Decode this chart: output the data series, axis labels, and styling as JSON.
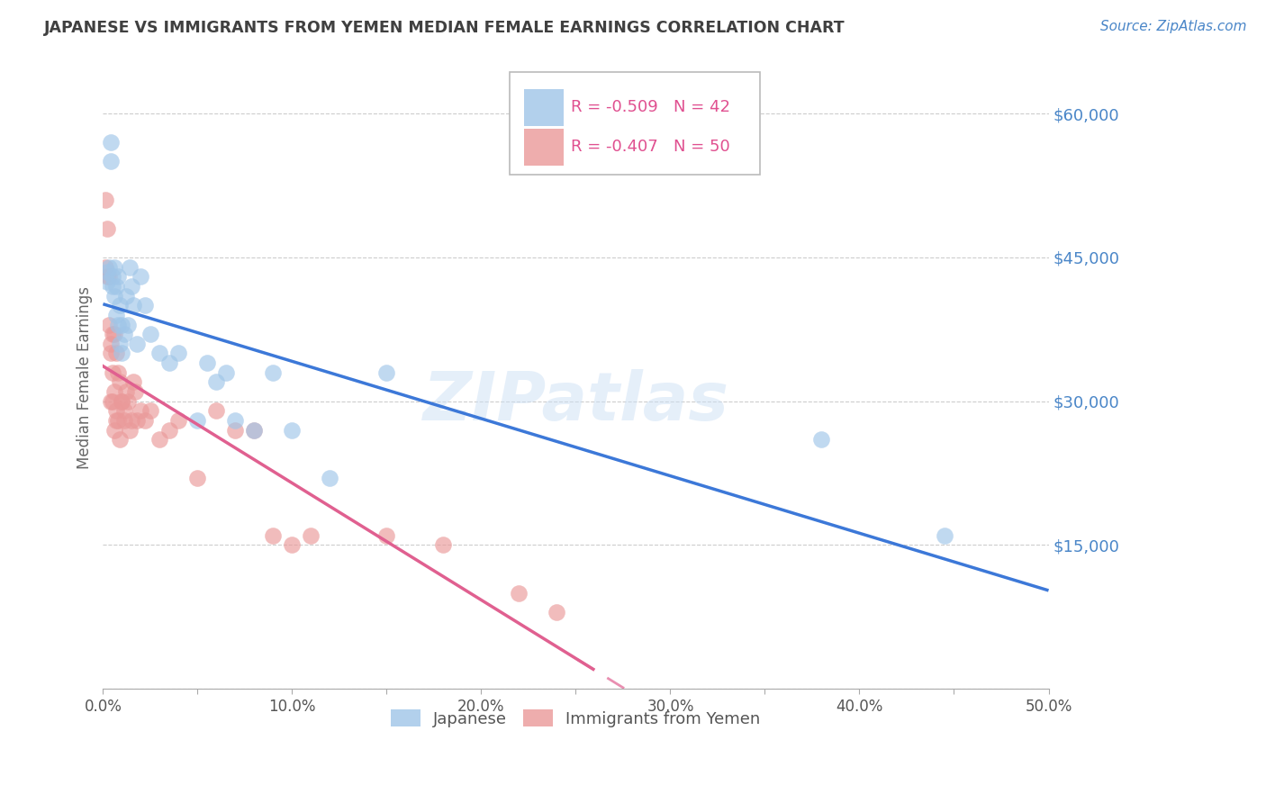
{
  "title": "JAPANESE VS IMMIGRANTS FROM YEMEN MEDIAN FEMALE EARNINGS CORRELATION CHART",
  "source": "Source: ZipAtlas.com",
  "ylabel": "Median Female Earnings",
  "x_min": 0.0,
  "x_max": 0.5,
  "y_min": 0,
  "y_max": 65000,
  "yticks": [
    0,
    15000,
    30000,
    45000,
    60000
  ],
  "ytick_labels": [
    "",
    "$15,000",
    "$30,000",
    "$45,000",
    "$60,000"
  ],
  "xtick_labels": [
    "0.0%",
    "",
    "10.0%",
    "",
    "20.0%",
    "",
    "30.0%",
    "",
    "40.0%",
    "",
    "50.0%"
  ],
  "xticks": [
    0.0,
    0.05,
    0.1,
    0.15,
    0.2,
    0.25,
    0.3,
    0.35,
    0.4,
    0.45,
    0.5
  ],
  "watermark": "ZIPatlas",
  "legend_label_japanese": "Japanese",
  "legend_label_yemen": "Immigrants from Yemen",
  "series1_color": "#9fc5e8",
  "series2_color": "#ea9999",
  "series1_line_color": "#3c78d8",
  "series2_line_color": "#e06090",
  "background_color": "#ffffff",
  "grid_color": "#cccccc",
  "title_color": "#404040",
  "axis_label_color": "#666666",
  "ytick_label_color": "#4a86c8",
  "R1": -0.509,
  "N1": 42,
  "R2": -0.407,
  "N2": 50,
  "japanese_x": [
    0.002,
    0.002,
    0.003,
    0.004,
    0.004,
    0.005,
    0.005,
    0.006,
    0.006,
    0.007,
    0.007,
    0.008,
    0.008,
    0.009,
    0.009,
    0.01,
    0.01,
    0.011,
    0.012,
    0.013,
    0.014,
    0.015,
    0.016,
    0.018,
    0.02,
    0.022,
    0.025,
    0.03,
    0.035,
    0.04,
    0.05,
    0.055,
    0.06,
    0.065,
    0.07,
    0.08,
    0.09,
    0.1,
    0.12,
    0.15,
    0.38,
    0.445
  ],
  "japanese_y": [
    42500,
    43500,
    44000,
    55000,
    57000,
    42000,
    43000,
    41000,
    44000,
    42000,
    39000,
    38000,
    43000,
    40000,
    36000,
    38000,
    35000,
    37000,
    41000,
    38000,
    44000,
    42000,
    40000,
    36000,
    43000,
    40000,
    37000,
    35000,
    34000,
    35000,
    28000,
    34000,
    32000,
    33000,
    28000,
    27000,
    33000,
    27000,
    22000,
    33000,
    26000,
    16000
  ],
  "yemen_x": [
    0.001,
    0.001,
    0.002,
    0.002,
    0.003,
    0.003,
    0.004,
    0.004,
    0.004,
    0.005,
    0.005,
    0.005,
    0.006,
    0.006,
    0.006,
    0.007,
    0.007,
    0.007,
    0.008,
    0.008,
    0.009,
    0.009,
    0.01,
    0.01,
    0.011,
    0.011,
    0.012,
    0.013,
    0.014,
    0.015,
    0.016,
    0.017,
    0.018,
    0.02,
    0.022,
    0.025,
    0.03,
    0.035,
    0.04,
    0.05,
    0.06,
    0.07,
    0.08,
    0.09,
    0.1,
    0.11,
    0.15,
    0.18,
    0.22,
    0.24
  ],
  "yemen_y": [
    44000,
    51000,
    43000,
    48000,
    43000,
    38000,
    36000,
    35000,
    30000,
    37000,
    33000,
    30000,
    37000,
    31000,
    27000,
    35000,
    29000,
    28000,
    33000,
    28000,
    32000,
    26000,
    30000,
    30000,
    29000,
    28000,
    31000,
    30000,
    27000,
    28000,
    32000,
    31000,
    28000,
    29000,
    28000,
    29000,
    26000,
    27000,
    28000,
    22000,
    29000,
    27000,
    27000,
    16000,
    15000,
    16000,
    16000,
    15000,
    10000,
    8000
  ]
}
